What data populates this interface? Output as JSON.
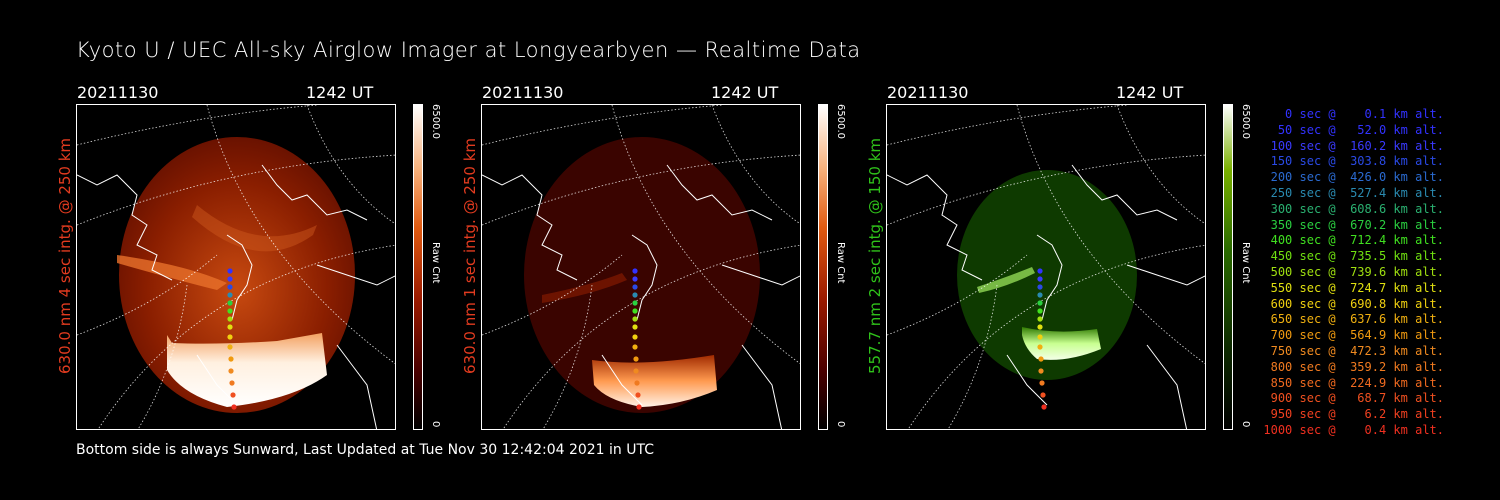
{
  "title": "Kyoto U / UEC All-sky Airglow Imager at Longyearbyen — Realtime Data",
  "panels": [
    {
      "date": "20211130",
      "time": "1242 UT",
      "ylabel": "630.0 nm 4 sec intg. @ 250 km",
      "ylabel_color": "#e23b1f",
      "cbar_max": "6500.0",
      "cbar_min": "0",
      "cbar_label": "Raw Cnt",
      "theme": "red"
    },
    {
      "date": "20211130",
      "time": "1242 UT",
      "ylabel": "630.0 nm 1 sec intg. @ 250 km",
      "ylabel_color": "#e23b1f",
      "cbar_max": "6500.0",
      "cbar_min": "0",
      "cbar_label": "Raw Cnt",
      "theme": "red-dim"
    },
    {
      "date": "20211130",
      "time": "1242 UT",
      "ylabel": "557.7 nm 2 sec intg. @ 150 km",
      "ylabel_color": "#2fc21a",
      "cbar_max": "6500.0",
      "cbar_min": "0",
      "cbar_label": "Raw Cnt",
      "theme": "green"
    }
  ],
  "footer": "Bottom side is always Sunward, Last Updated at Tue Nov 30 12:42:04 2021 in UTC",
  "legend": [
    {
      "text": "   0 sec @    0.1 km alt.",
      "color": "#3232ff"
    },
    {
      "text": "  50 sec @   52.0 km alt.",
      "color": "#3232ff"
    },
    {
      "text": " 100 sec @  160.2 km alt.",
      "color": "#3a3aff"
    },
    {
      "text": " 150 sec @  303.8 km alt.",
      "color": "#2a4ae6"
    },
    {
      "text": " 200 sec @  426.0 km alt.",
      "color": "#2a6ad0"
    },
    {
      "text": " 250 sec @  527.4 km alt.",
      "color": "#2a8ab0"
    },
    {
      "text": " 300 sec @  608.6 km alt.",
      "color": "#2ab070"
    },
    {
      "text": " 350 sec @  670.2 km alt.",
      "color": "#2ad040"
    },
    {
      "text": " 400 sec @  712.4 km alt.",
      "color": "#40e020"
    },
    {
      "text": " 450 sec @  735.5 km alt.",
      "color": "#70e010"
    },
    {
      "text": " 500 sec @  739.6 km alt.",
      "color": "#a0e010"
    },
    {
      "text": " 550 sec @  724.7 km alt.",
      "color": "#e0e010"
    },
    {
      "text": " 600 sec @  690.8 km alt.",
      "color": "#f0d010"
    },
    {
      "text": " 650 sec @  637.6 km alt.",
      "color": "#f0b010"
    },
    {
      "text": " 700 sec @  564.9 km alt.",
      "color": "#f09a10"
    },
    {
      "text": " 750 sec @  472.3 km alt.",
      "color": "#f08a20"
    },
    {
      "text": " 800 sec @  359.2 km alt.",
      "color": "#f07a20"
    },
    {
      "text": " 850 sec @  224.9 km alt.",
      "color": "#f06a20"
    },
    {
      "text": " 900 sec @   68.7 km alt.",
      "color": "#f05020"
    },
    {
      "text": " 950 sec @    6.2 km alt.",
      "color": "#f04020"
    },
    {
      "text": "1000 sec @    0.4 km alt.",
      "color": "#f03020"
    }
  ]
}
